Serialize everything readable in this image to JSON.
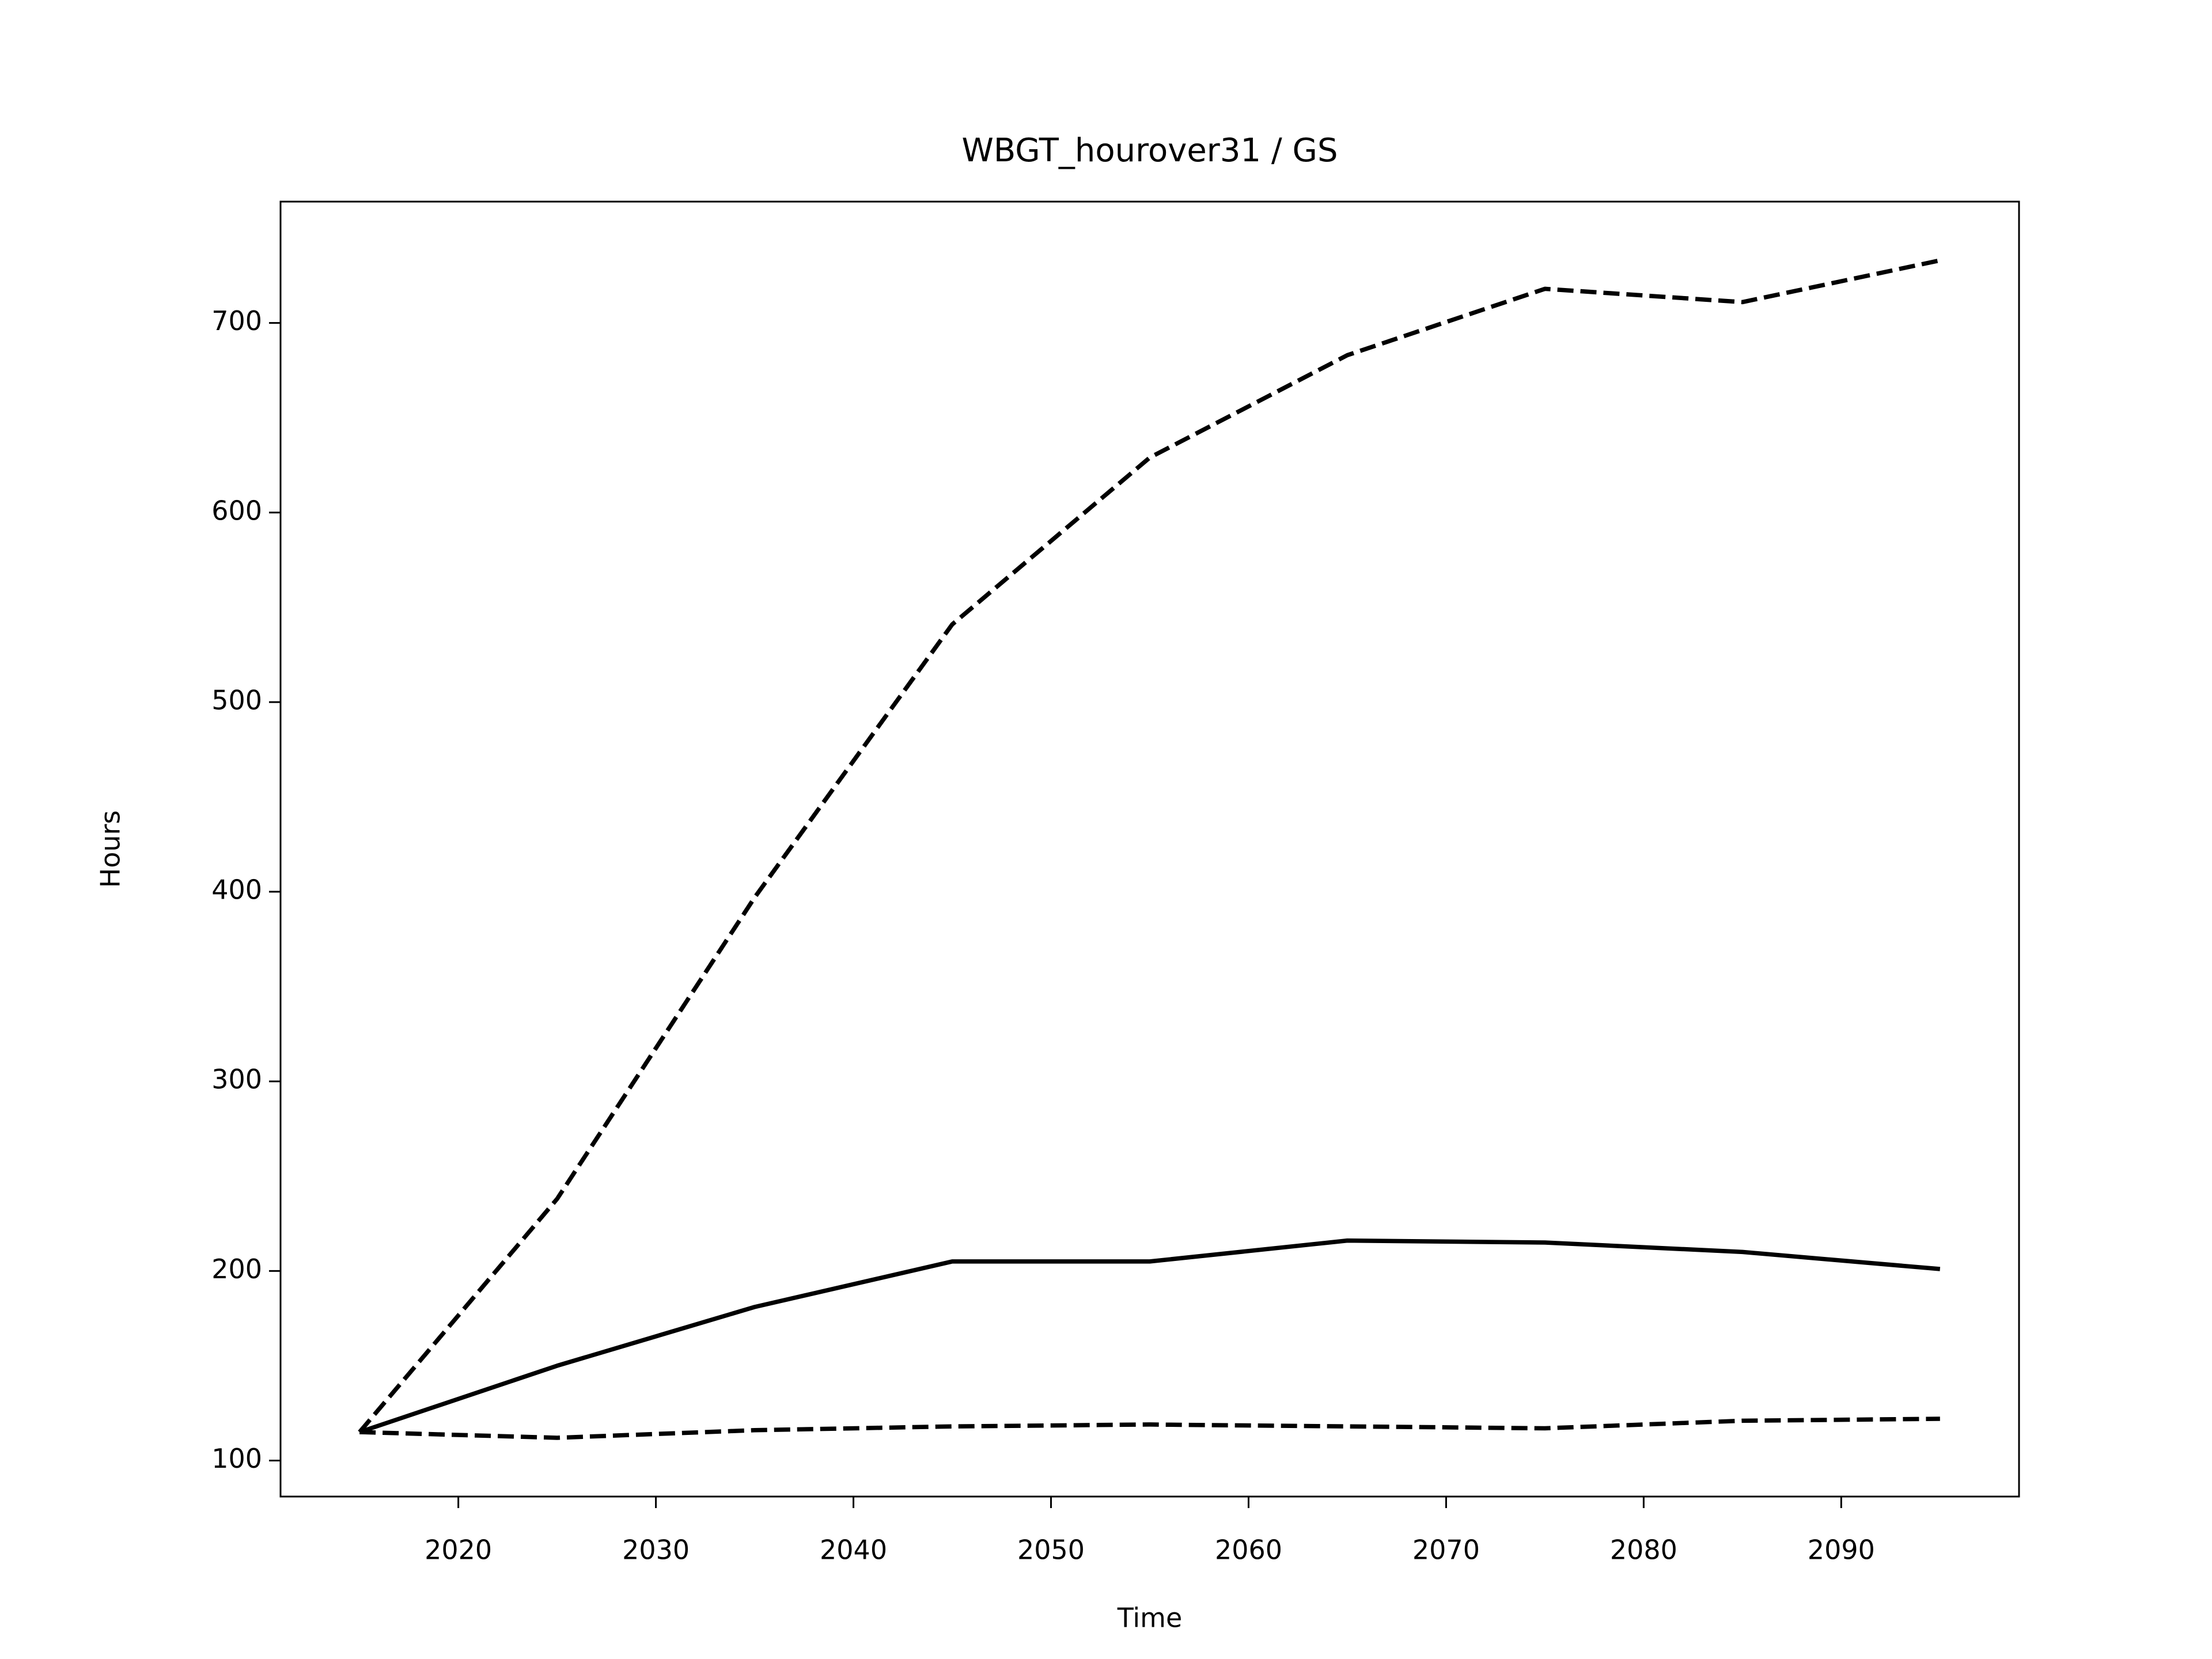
{
  "chart_data": {
    "type": "line",
    "title": "WBGT_hourover31 / GS",
    "x_label": "Time",
    "y_label": "Hours",
    "x": [
      2015,
      2025,
      2035,
      2045,
      2055,
      2065,
      2075,
      2085,
      2095
    ],
    "series": [
      {
        "color": "#000000",
        "style": "solid",
        "values": [
          115,
          150,
          181,
          205,
          205,
          216,
          215,
          210,
          201
        ]
      },
      {
        "color": "#000000",
        "style": "dashed",
        "values": [
          115,
          238,
          397,
          541,
          629,
          683,
          718,
          711,
          733
        ]
      },
      {
        "color": "#000000",
        "style": "dashed",
        "values": [
          115,
          112,
          116,
          118,
          119,
          118,
          117,
          121,
          122
        ]
      }
    ],
    "xlim": [
      2011,
      2099
    ],
    "xticks": [
      2020,
      2030,
      2040,
      2050,
      2060,
      2070,
      2080,
      2090
    ],
    "ylim": [
      81,
      764
    ],
    "yticks": [
      100,
      200,
      300,
      400,
      500,
      600,
      700
    ],
    "grid": false
  }
}
